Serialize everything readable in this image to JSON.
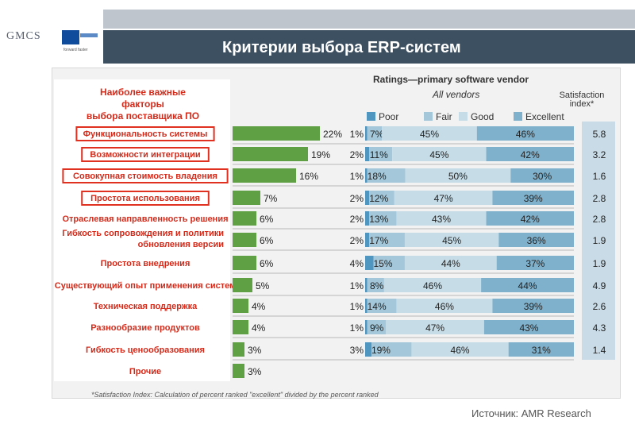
{
  "logo": {
    "gmcs": "GMCS",
    "tagline": "forward faster"
  },
  "slide_title": "Критерии выбора ERP-систем",
  "source": "Источник: AMR Research",
  "chart_data": {
    "type": "bar",
    "left_heading": [
      "Наиболее важные",
      "факторы",
      "выбора поставщика ПО"
    ],
    "ratings_title": "Ratings—primary software vendor",
    "ratings_subtitle": "All vendors",
    "satisfaction_title": [
      "Satisfaction",
      "index*"
    ],
    "legend": [
      "Poor",
      "Fair",
      "Good",
      "Excellent"
    ],
    "colors": {
      "importance": "#5fa044",
      "poor": "#4f96c0",
      "fair": "#a4c8da",
      "good": "#c6dde8",
      "excellent": "#7fb1cc",
      "highlight": "#e03020"
    },
    "categories": [
      "Функциональность системы",
      "Возможности интеграции",
      "Совокупная стоимость владения",
      "Простота использования",
      "Отраслевая направленность решения",
      "Гибкость сопровождения и политики обновления версии",
      "Простота внедрения",
      "Существующий опыт применения систем",
      "Техническая поддержка",
      "Разнообразие продуктов",
      "Гибкость ценообразования",
      "Прочие"
    ],
    "highlighted": [
      true,
      true,
      true,
      true,
      false,
      false,
      false,
      false,
      false,
      false,
      false,
      false
    ],
    "importance": [
      22,
      19,
      16,
      7,
      6,
      6,
      6,
      5,
      4,
      4,
      3,
      3
    ],
    "poor": [
      1,
      2,
      1,
      2,
      2,
      2,
      4,
      1,
      1,
      1,
      3,
      null
    ],
    "fair": [
      7,
      11,
      18,
      12,
      13,
      17,
      15,
      8,
      14,
      9,
      19,
      null
    ],
    "good": [
      45,
      45,
      50,
      47,
      43,
      45,
      44,
      46,
      46,
      47,
      46,
      null
    ],
    "excellent": [
      46,
      42,
      30,
      39,
      42,
      36,
      37,
      44,
      39,
      43,
      31,
      null
    ],
    "satisfaction_index": [
      "5.8",
      "3.2",
      "1.6",
      "2.8",
      "2.8",
      "1.9",
      "1.9",
      "4.9",
      "2.6",
      "4.3",
      "1.4",
      null
    ],
    "footnote": "*Satisfaction Index: Calculation of percent ranked \"excellent\" divided by the percent ranked"
  }
}
